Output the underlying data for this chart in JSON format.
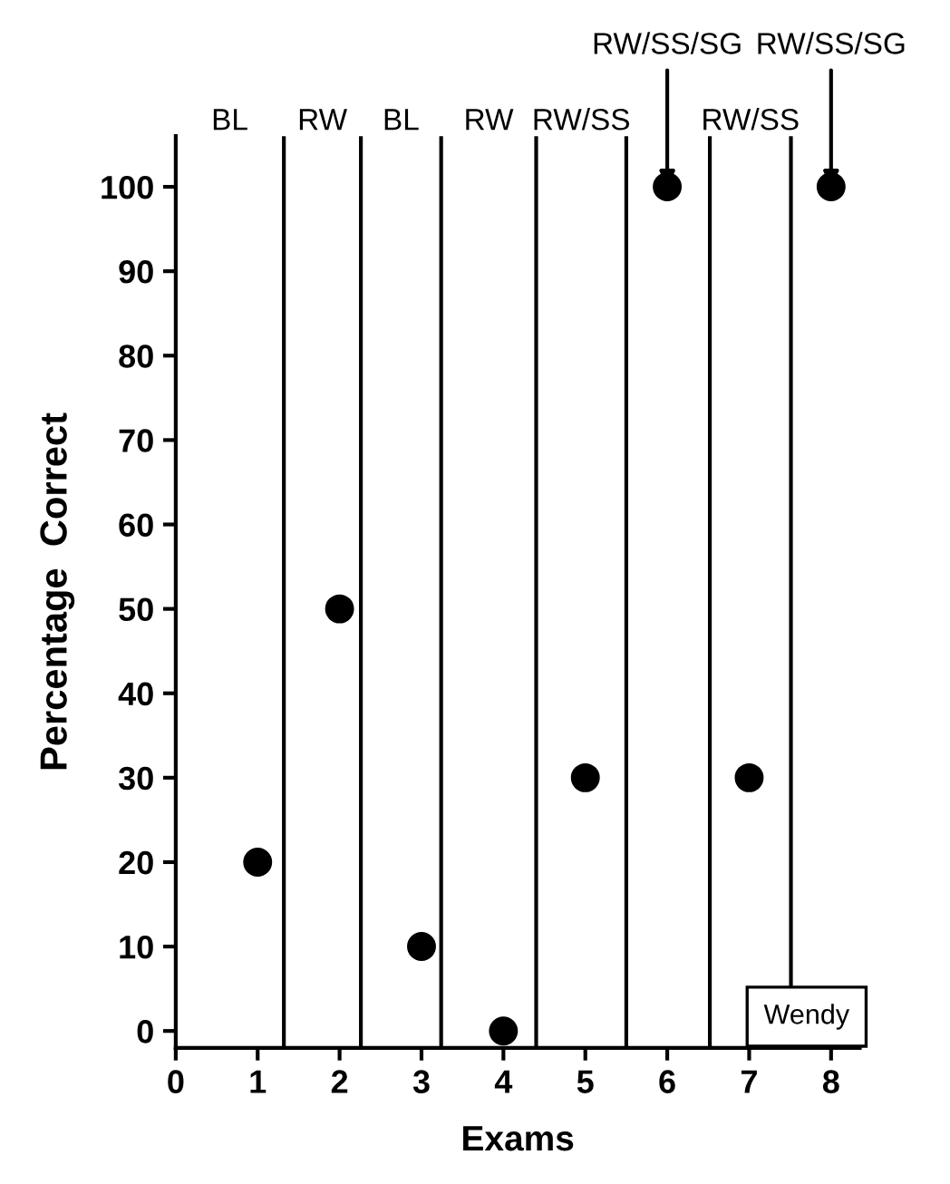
{
  "chart_data": {
    "type": "scatter",
    "xlabel": "Exams",
    "ylabel": "Percentage  Correct",
    "x": [
      1,
      2,
      3,
      4,
      5,
      6,
      7,
      8
    ],
    "values": [
      20,
      50,
      10,
      0,
      30,
      100,
      30,
      100
    ],
    "color": "#000000",
    "marker": "circle",
    "xlim": [
      0,
      8.35
    ],
    "ylim": [
      -2,
      106
    ],
    "xticks": [
      0,
      1,
      2,
      3,
      4,
      5,
      6,
      7,
      8
    ],
    "yticks": [
      0,
      10,
      20,
      30,
      40,
      50,
      60,
      70,
      80,
      90,
      100
    ],
    "grid": false,
    "ref_lines": [
      {
        "axis": "x",
        "value": 1.32,
        "color": "#000000"
      },
      {
        "axis": "x",
        "value": 2.26,
        "color": "#000000"
      },
      {
        "axis": "x",
        "value": 3.24,
        "color": "#000000"
      },
      {
        "axis": "x",
        "value": 4.4,
        "color": "#000000"
      },
      {
        "axis": "x",
        "value": 5.5,
        "color": "#000000"
      },
      {
        "axis": "x",
        "value": 6.52,
        "color": "#000000"
      },
      {
        "axis": "x",
        "value": 7.51,
        "color": "#000000"
      }
    ],
    "annotations": [
      "BL",
      "RW",
      "BL",
      "RW",
      "RW/SS",
      "RW/SS",
      {
        "text": "RW/SS/SG",
        "x": 6,
        "y": 100
      },
      {
        "text": "RW/SS/SG",
        "x": 8,
        "y": 100
      },
      "Wendy"
    ]
  }
}
